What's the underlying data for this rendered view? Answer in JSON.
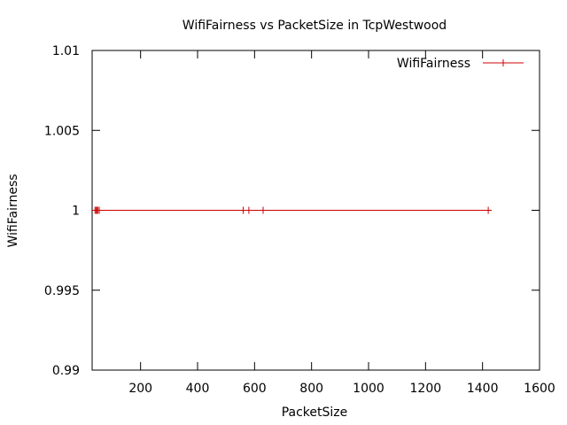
{
  "chart_data": {
    "type": "line",
    "title": "WifiFairness vs PacketSize in TcpWestwood",
    "xlabel": "PacketSize",
    "ylabel": "WifiFairness",
    "xlim": [
      30,
      1600
    ],
    "ylim": [
      0.99,
      1.01
    ],
    "x_ticks": [
      200,
      400,
      600,
      800,
      1000,
      1200,
      1400,
      1600
    ],
    "x_tick_labels": [
      "200",
      "400",
      "600",
      "800",
      "1000",
      "1200",
      "1400",
      "1600"
    ],
    "y_ticks": [
      0.99,
      0.995,
      1,
      1.005,
      1.01
    ],
    "y_tick_labels": [
      "0.99",
      "0.995",
      "1",
      "1.005",
      "1.01"
    ],
    "grid": false,
    "legend_position": "top-right",
    "series": [
      {
        "name": "WifiFairness",
        "color": "#cc0000",
        "marker": "plus",
        "x": [
          40,
          44,
          48,
          50,
          55,
          560,
          580,
          630,
          1420
        ],
        "y": [
          1,
          1,
          1,
          1,
          1,
          1,
          1,
          1,
          1
        ]
      }
    ]
  }
}
